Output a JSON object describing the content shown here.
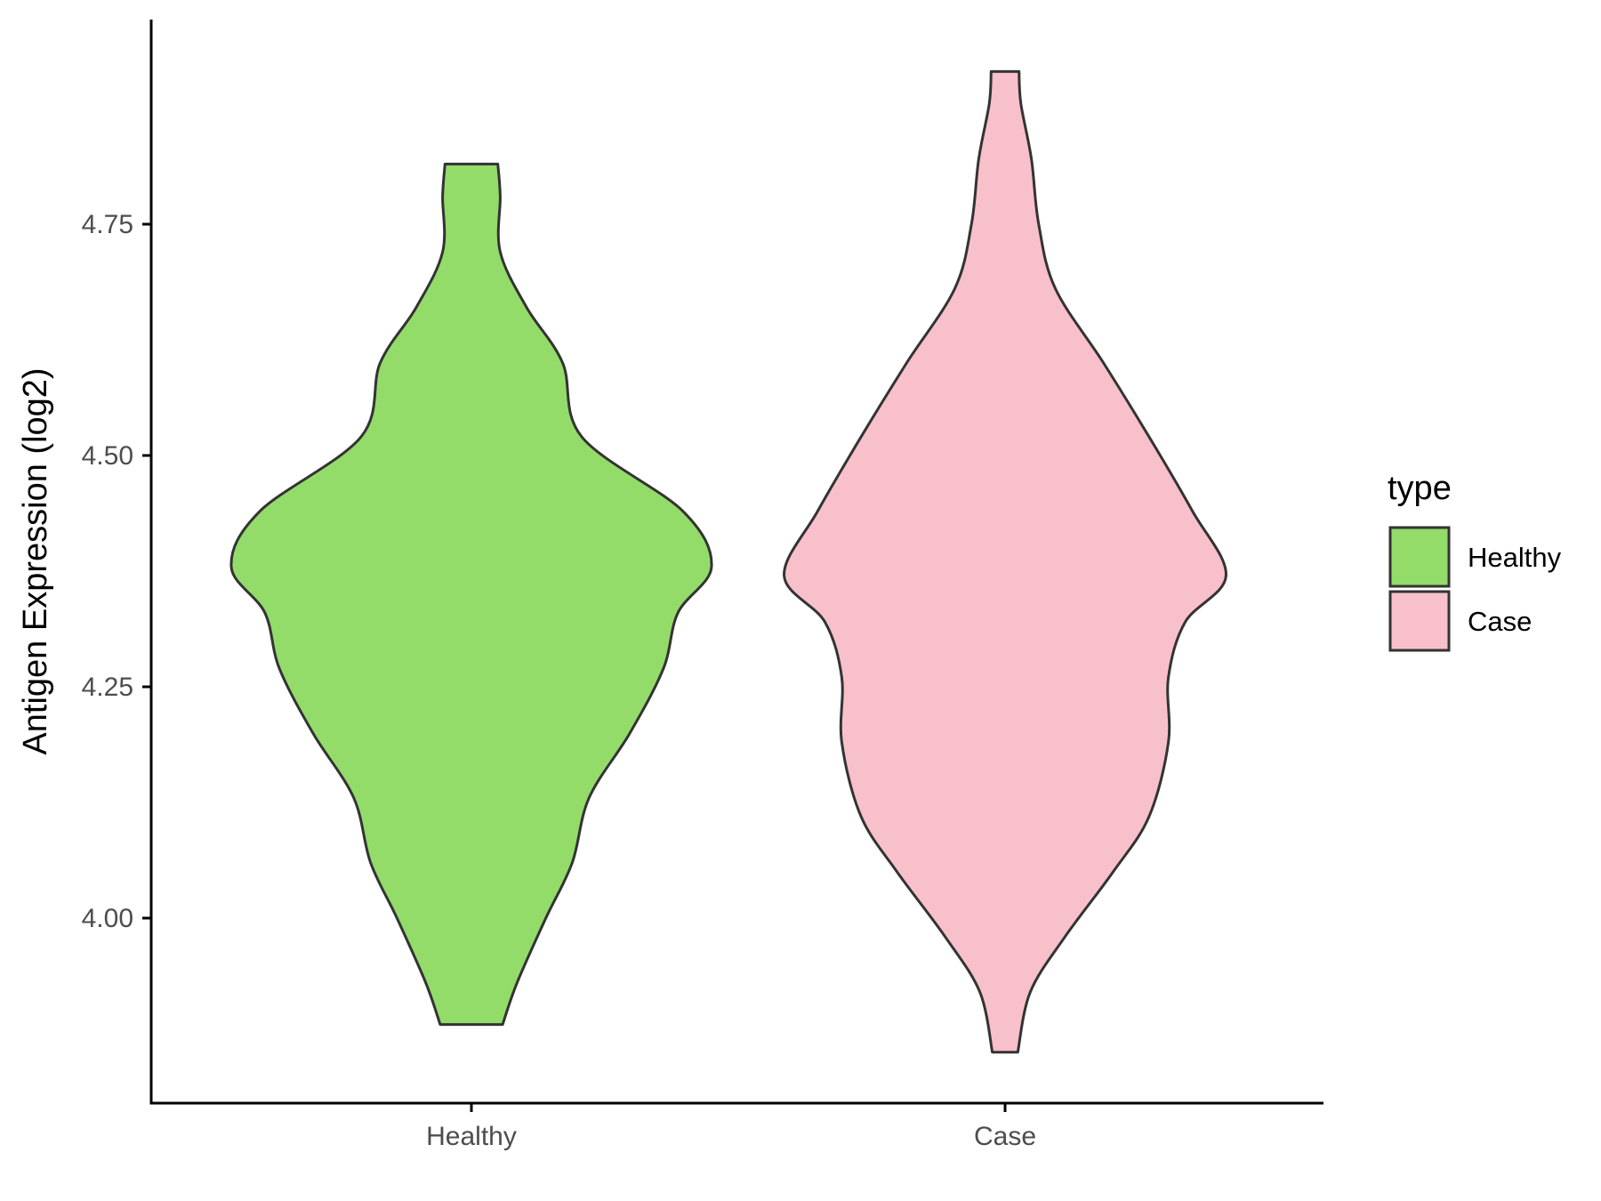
{
  "chart_data": {
    "type": "violin",
    "title": "",
    "xlabel": "",
    "ylabel": "Antigen Expression (log2)",
    "ylim": [
      3.8,
      4.96
    ],
    "yticks": [
      {
        "value": 4.0,
        "label": "4.00"
      },
      {
        "value": 4.25,
        "label": "4.25"
      },
      {
        "value": 4.5,
        "label": "4.50"
      },
      {
        "value": 4.75,
        "label": "4.75"
      }
    ],
    "categories": [
      "Healthy",
      "Case"
    ],
    "grid": false,
    "legend": {
      "title": "type",
      "position": "right",
      "entries": [
        {
          "label": "Healthy",
          "color": "#93DC6A"
        },
        {
          "label": "Case",
          "color": "#F8C0CB"
        }
      ]
    },
    "series": [
      {
        "name": "Healthy",
        "color": "#93DC6A",
        "min": 3.885,
        "max": 4.815,
        "density": [
          [
            3.885,
            0.13
          ],
          [
            3.93,
            0.19
          ],
          [
            4.0,
            0.31
          ],
          [
            4.06,
            0.42
          ],
          [
            4.13,
            0.49
          ],
          [
            4.2,
            0.66
          ],
          [
            4.27,
            0.8
          ],
          [
            4.33,
            0.86
          ],
          [
            4.38,
            1.0
          ],
          [
            4.44,
            0.88
          ],
          [
            4.52,
            0.46
          ],
          [
            4.6,
            0.38
          ],
          [
            4.66,
            0.23
          ],
          [
            4.72,
            0.12
          ],
          [
            4.78,
            0.12
          ],
          [
            4.815,
            0.11
          ]
        ]
      },
      {
        "name": "Case",
        "color": "#F8C0CB",
        "min": 3.855,
        "max": 4.915,
        "density": [
          [
            3.855,
            0.053
          ],
          [
            3.92,
            0.105
          ],
          [
            3.98,
            0.25
          ],
          [
            4.05,
            0.45
          ],
          [
            4.11,
            0.6
          ],
          [
            4.19,
            0.68
          ],
          [
            4.26,
            0.68
          ],
          [
            4.32,
            0.75
          ],
          [
            4.37,
            0.92
          ],
          [
            4.44,
            0.78
          ],
          [
            4.52,
            0.6
          ],
          [
            4.6,
            0.41
          ],
          [
            4.68,
            0.21
          ],
          [
            4.75,
            0.14
          ],
          [
            4.82,
            0.11
          ],
          [
            4.88,
            0.066
          ],
          [
            4.915,
            0.058
          ]
        ]
      }
    ]
  }
}
